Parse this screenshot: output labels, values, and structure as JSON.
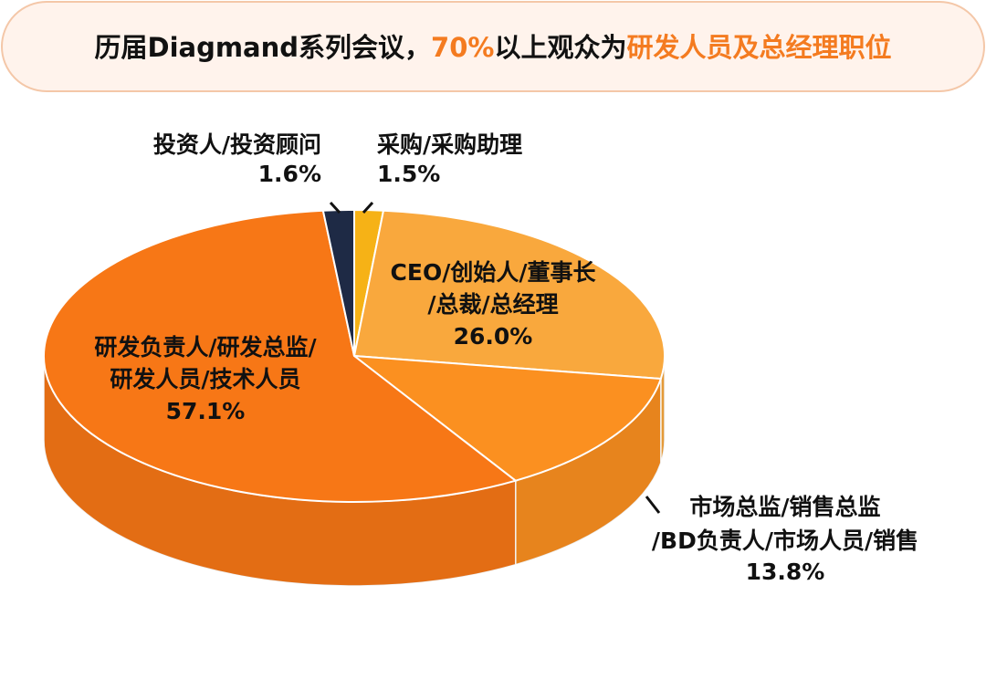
{
  "chart_data": {
    "type": "pie3d",
    "title": [
      "历届Diagmand系列会议，",
      "70%",
      "以上观众为",
      "研发人员及总经理职位"
    ],
    "title_colors": [
      "#111111",
      "#f47b20",
      "#111111",
      "#f47b20"
    ],
    "categories": [
      [
        "采购/采购助理"
      ],
      [
        "CEO/创始人/董事长",
        "/总裁/总经理"
      ],
      [
        "市场总监/销售总监",
        "/BD负责人/市场人员/销售"
      ],
      [
        "研发负责人/研发总监/",
        "研发人员/技术人员"
      ],
      [
        "投资人/投资顾问"
      ]
    ],
    "values": [
      1.5,
      26.0,
      13.8,
      57.1,
      1.6
    ],
    "value_labels": [
      "1.5%",
      "26.0%",
      "13.8%",
      "57.1%",
      "1.6%"
    ],
    "colors": [
      "#f6b216",
      "#f9a83d",
      "#fb9020",
      "#f77716",
      "#1e2a45"
    ]
  }
}
